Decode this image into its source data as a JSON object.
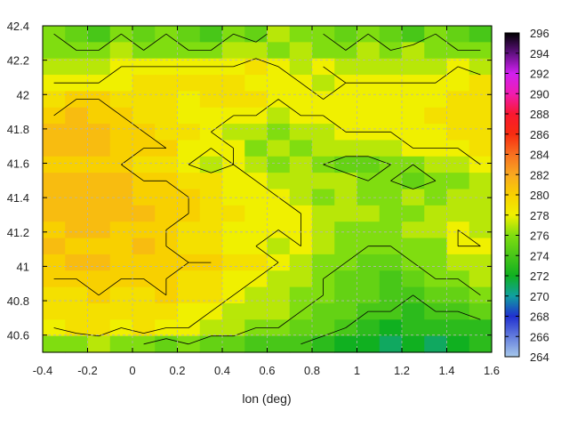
{
  "chart_data": {
    "type": "heatmap",
    "title": "",
    "xlabel": "lon (deg)",
    "ylabel": "",
    "xlim": [
      -0.4,
      1.6
    ],
    "ylim": [
      40.5,
      42.4
    ],
    "x_ticks": [
      -0.4,
      -0.2,
      0,
      0.2,
      0.4,
      0.6,
      0.8,
      1,
      1.2,
      1.4,
      1.6
    ],
    "x_tick_labels": [
      "-0.4",
      "-0.2",
      "0",
      "0.2",
      "0.4",
      "0.6",
      "0.8",
      "1",
      "1.2",
      "1.4",
      "1.6"
    ],
    "y_ticks": [
      40.6,
      40.8,
      41,
      41.2,
      41.4,
      41.6,
      41.8,
      42,
      42.2,
      42.4
    ],
    "y_tick_labels": [
      "40.6",
      "40.8",
      "41",
      "41.2",
      "41.4",
      "41.6",
      "41.8",
      "42",
      "42.2",
      "42.4"
    ],
    "grid": true,
    "colorbar": {
      "min": 264,
      "max": 296,
      "ticks": [
        264,
        266,
        268,
        270,
        272,
        274,
        276,
        278,
        280,
        282,
        284,
        286,
        288,
        290,
        292,
        294,
        296
      ],
      "tick_labels": [
        "264",
        "266",
        "268",
        "270",
        "272",
        "274",
        "276",
        "278",
        "280",
        "282",
        "284",
        "286",
        "288",
        "290",
        "292",
        "294",
        "296"
      ],
      "colors": [
        [
          264,
          "#a6c8ea"
        ],
        [
          268,
          "#2030d0"
        ],
        [
          270,
          "#10a0a0"
        ],
        [
          272,
          "#10b020"
        ],
        [
          276,
          "#80dd10"
        ],
        [
          278,
          "#f0f000"
        ],
        [
          280,
          "#f8d000"
        ],
        [
          282,
          "#f8a820"
        ],
        [
          284,
          "#f87020"
        ],
        [
          286,
          "#f82c10"
        ],
        [
          288,
          "#f81830"
        ],
        [
          290,
          "#f01cb0"
        ],
        [
          292,
          "#d020f0"
        ],
        [
          294,
          "#601080"
        ],
        [
          296,
          "#000000"
        ]
      ]
    },
    "values": [
      [
        276,
        275,
        274,
        276,
        275,
        276,
        275,
        274,
        276,
        275,
        277,
        276,
        276,
        275,
        276,
        275,
        274,
        276,
        275,
        274
      ],
      [
        276,
        276,
        276,
        277,
        276,
        276,
        276,
        276,
        277,
        277,
        276,
        277,
        276,
        276,
        277,
        276,
        277,
        276,
        276,
        276
      ],
      [
        277,
        277,
        277,
        278,
        278,
        278,
        278,
        278,
        278,
        279,
        278,
        277,
        278,
        277,
        277,
        277,
        277,
        277,
        278,
        277
      ],
      [
        278,
        278,
        278,
        278,
        279,
        279,
        279,
        279,
        279,
        278,
        278,
        278,
        277,
        278,
        278,
        278,
        278,
        278,
        278,
        279
      ],
      [
        279,
        280,
        280,
        279,
        279,
        279,
        278,
        279,
        279,
        279,
        278,
        278,
        278,
        278,
        278,
        278,
        278,
        278,
        279,
        279
      ],
      [
        280,
        281,
        280,
        280,
        279,
        279,
        278,
        278,
        278,
        278,
        277,
        278,
        278,
        278,
        278,
        278,
        278,
        279,
        279,
        279
      ],
      [
        281,
        281,
        281,
        280,
        280,
        279,
        279,
        278,
        277,
        277,
        276,
        277,
        277,
        278,
        278,
        278,
        278,
        278,
        279,
        279
      ],
      [
        281,
        281,
        281,
        280,
        280,
        280,
        278,
        278,
        278,
        276,
        277,
        276,
        277,
        277,
        277,
        277,
        278,
        278,
        278,
        279
      ],
      [
        280,
        280,
        280,
        280,
        279,
        279,
        278,
        277,
        278,
        277,
        276,
        277,
        276,
        275,
        275,
        276,
        276,
        277,
        277,
        278
      ],
      [
        281,
        281,
        281,
        281,
        280,
        280,
        279,
        279,
        278,
        278,
        277,
        277,
        277,
        277,
        276,
        276,
        275,
        276,
        276,
        277
      ],
      [
        281,
        281,
        281,
        281,
        280,
        280,
        280,
        279,
        278,
        278,
        278,
        277,
        276,
        277,
        276,
        276,
        277,
        276,
        277,
        277
      ],
      [
        281,
        281,
        281,
        281,
        281,
        280,
        280,
        279,
        279,
        278,
        278,
        278,
        277,
        277,
        277,
        276,
        276,
        277,
        277,
        277
      ],
      [
        280,
        281,
        281,
        280,
        280,
        280,
        279,
        279,
        278,
        278,
        278,
        278,
        277,
        276,
        276,
        276,
        277,
        277,
        278,
        277
      ],
      [
        281,
        280,
        280,
        280,
        281,
        280,
        279,
        279,
        278,
        278,
        277,
        278,
        277,
        276,
        276,
        276,
        276,
        276,
        278,
        278
      ],
      [
        280,
        281,
        281,
        280,
        280,
        280,
        280,
        280,
        279,
        279,
        278,
        277,
        276,
        276,
        275,
        275,
        276,
        276,
        277,
        277
      ],
      [
        280,
        280,
        280,
        280,
        280,
        280,
        279,
        279,
        278,
        278,
        277,
        277,
        276,
        275,
        275,
        274,
        275,
        276,
        276,
        277
      ],
      [
        279,
        279,
        280,
        279,
        279,
        280,
        279,
        279,
        278,
        277,
        277,
        276,
        276,
        275,
        275,
        274,
        274,
        275,
        275,
        276
      ],
      [
        279,
        279,
        279,
        279,
        279,
        279,
        278,
        278,
        277,
        277,
        277,
        276,
        275,
        275,
        274,
        274,
        273,
        274,
        274,
        275
      ],
      [
        278,
        279,
        279,
        278,
        279,
        278,
        278,
        277,
        277,
        276,
        276,
        275,
        275,
        274,
        273,
        272,
        273,
        273,
        273,
        273
      ],
      [
        276,
        276,
        277,
        276,
        276,
        275,
        276,
        275,
        275,
        274,
        274,
        274,
        273,
        272,
        272,
        271,
        272,
        271,
        272,
        273
      ]
    ]
  },
  "page": {
    "background": "#ffffff",
    "grid_color": "#b4b4b4",
    "contour_color": "#000000"
  }
}
